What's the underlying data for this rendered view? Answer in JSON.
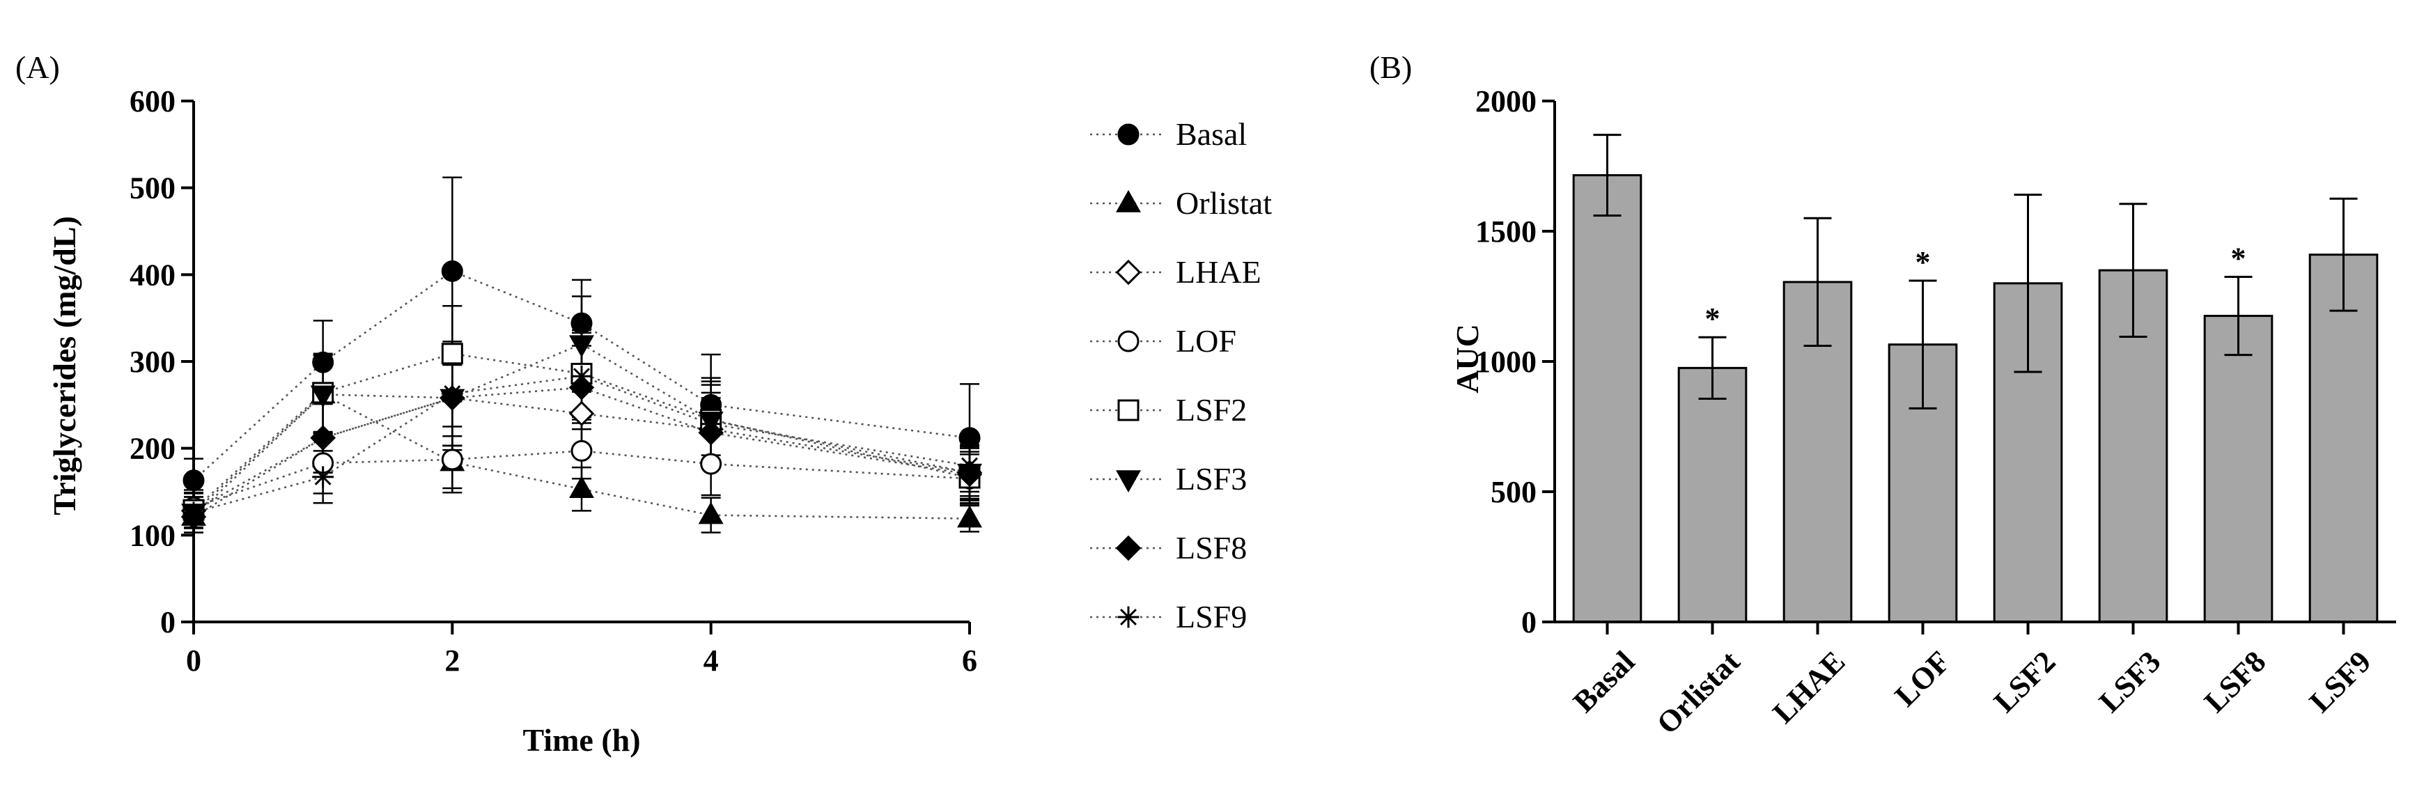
{
  "colors": {
    "ink": "#000000",
    "bar_fill": "#a6a6a6",
    "background": "#ffffff"
  },
  "chart_data": [
    {
      "panel_label": "(A)",
      "type": "line",
      "title": "",
      "xlabel": "Time (h)",
      "ylabel": "Triglycerides (mg/dL)",
      "xlim": [
        0,
        6
      ],
      "ylim": [
        0,
        600
      ],
      "x_ticks": [
        0,
        2,
        4,
        6
      ],
      "y_ticks": [
        0,
        100,
        200,
        300,
        400,
        500,
        600
      ],
      "grid": false,
      "legend_position": "right",
      "line_style": "dotted",
      "x": [
        0,
        1,
        2,
        3,
        4,
        6
      ],
      "series": [
        {
          "name": "Basal",
          "marker": "filled-circle",
          "values": [
            163,
            299,
            404,
            344,
            250,
            212
          ],
          "errors": [
            25,
            48,
            108,
            50,
            58,
            62
          ]
        },
        {
          "name": "Orlistat",
          "marker": "filled-triangle",
          "values": [
            121,
            262,
            184,
            153,
            123,
            119
          ],
          "errors": [
            18,
            45,
            30,
            25,
            20,
            15
          ]
        },
        {
          "name": "LHAE",
          "marker": "open-diamond",
          "values": [
            128,
            212,
            258,
            240,
            222,
            172
          ],
          "errors": [
            20,
            40,
            55,
            45,
            42,
            32
          ]
        },
        {
          "name": "LOF",
          "marker": "open-circle",
          "values": [
            132,
            183,
            187,
            197,
            182,
            165
          ],
          "errors": [
            20,
            35,
            38,
            32,
            36,
            28
          ]
        },
        {
          "name": "LSF2",
          "marker": "open-square",
          "values": [
            129,
            264,
            309,
            286,
            233,
            166
          ],
          "errors": [
            20,
            45,
            55,
            50,
            48,
            30
          ]
        },
        {
          "name": "LSF3",
          "marker": "filled-down-triangle",
          "values": [
            126,
            262,
            258,
            320,
            232,
            172
          ],
          "errors": [
            18,
            45,
            60,
            55,
            45,
            30
          ]
        },
        {
          "name": "LSF8",
          "marker": "filled-diamond",
          "values": [
            121,
            212,
            258,
            270,
            218,
            170
          ],
          "errors": [
            18,
            40,
            55,
            48,
            40,
            30
          ]
        },
        {
          "name": "LSF9",
          "marker": "asterisk",
          "values": [
            126,
            167,
            263,
            283,
            228,
            180
          ],
          "errors": [
            18,
            30,
            60,
            50,
            45,
            35
          ]
        }
      ]
    },
    {
      "panel_label": "(B)",
      "type": "bar",
      "title": "",
      "xlabel": "",
      "ylabel": "AUC",
      "ylim": [
        0,
        2000
      ],
      "y_ticks": [
        0,
        500,
        1000,
        1500,
        2000
      ],
      "grid": false,
      "categories": [
        "Basal",
        "Orlistat",
        "LHAE",
        "LOF",
        "LSF2",
        "LSF3",
        "LSF8",
        "LSF9"
      ],
      "values": [
        1715,
        975,
        1305,
        1065,
        1300,
        1350,
        1175,
        1410
      ],
      "errors": [
        155,
        118,
        245,
        245,
        340,
        255,
        150,
        215
      ],
      "significance": [
        "",
        "*",
        "",
        "*",
        "",
        "",
        "*",
        ""
      ]
    }
  ]
}
